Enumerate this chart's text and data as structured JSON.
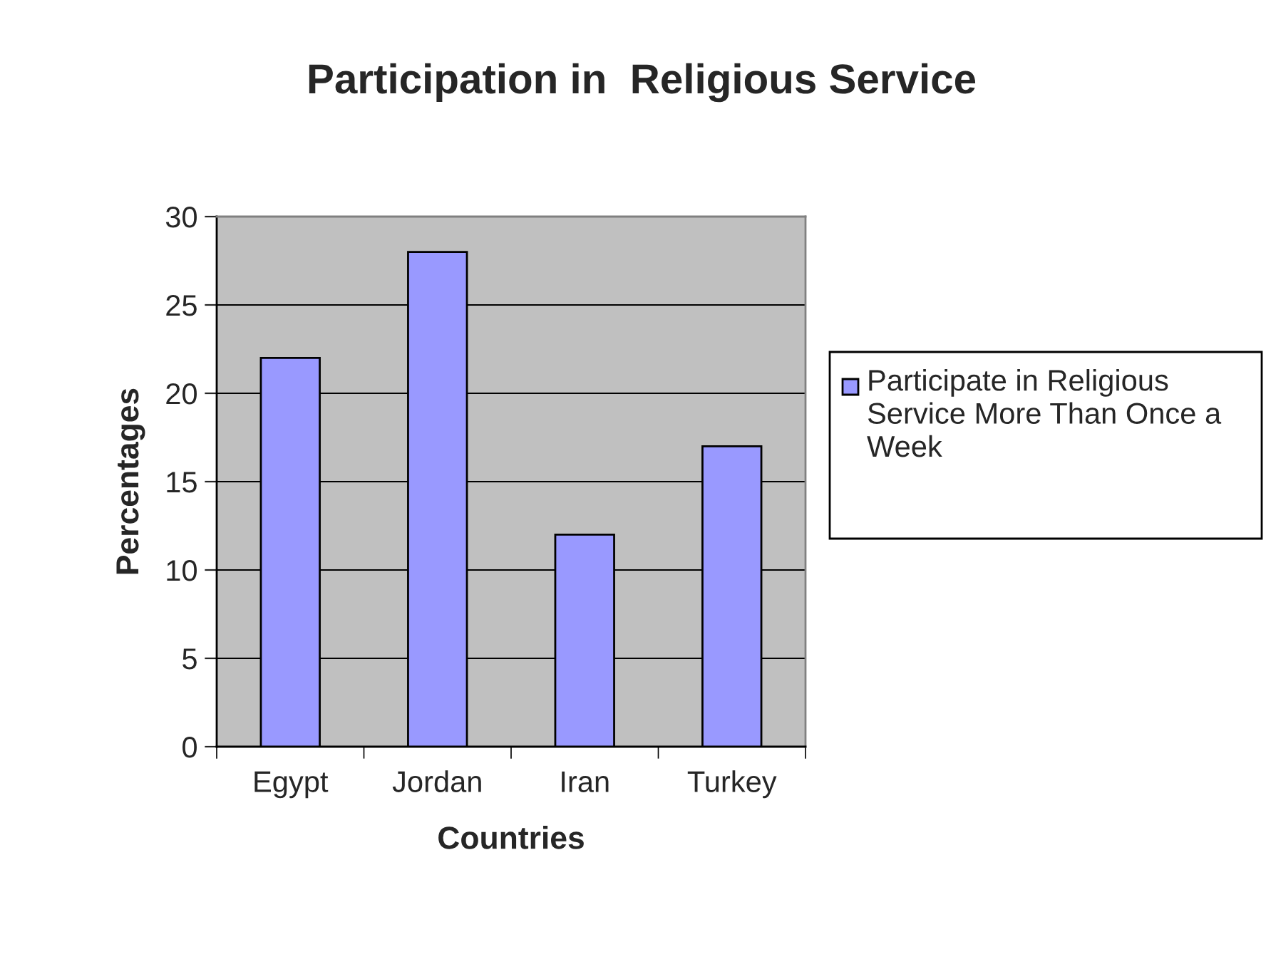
{
  "chart_data": {
    "type": "bar",
    "title": "Participation in  Religious Service",
    "xlabel": "Countries",
    "ylabel": "Percentages",
    "categories": [
      "Egypt",
      "Jordan",
      "Iran",
      "Turkey"
    ],
    "series": [
      {
        "name": "Participate in Religious Service More Than Once a Week",
        "color": "#9999ff",
        "values": [
          22,
          28,
          12,
          17
        ]
      }
    ],
    "ylim": [
      0,
      30
    ],
    "yticks": [
      0,
      5,
      10,
      15,
      20,
      25,
      30
    ],
    "grid": "y",
    "legend": "right"
  }
}
